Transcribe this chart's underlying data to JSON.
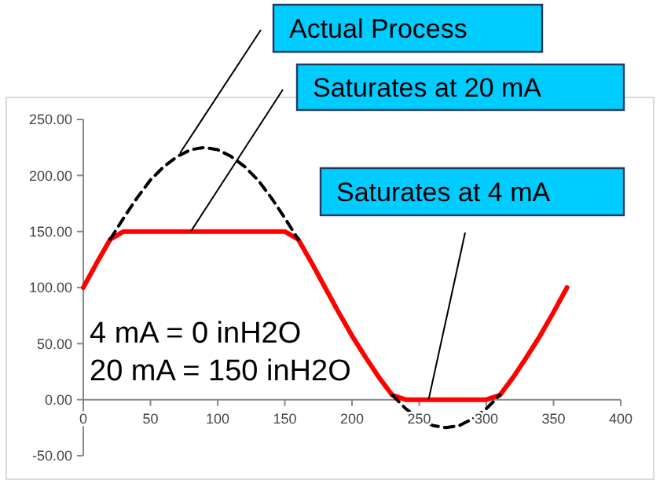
{
  "chart_data": {
    "type": "line",
    "x": [
      0,
      10,
      20,
      30,
      40,
      50,
      60,
      70,
      80,
      90,
      100,
      110,
      120,
      130,
      140,
      150,
      160,
      170,
      180,
      190,
      200,
      210,
      220,
      230,
      240,
      250,
      260,
      270,
      280,
      290,
      300,
      310,
      320,
      330,
      340,
      350,
      360
    ],
    "series": [
      {
        "color": "#ff0000",
        "line_style": "solid",
        "values": [
          100,
          122,
          143,
          150,
          150,
          150,
          150,
          150,
          150,
          150,
          150,
          150,
          150,
          150,
          150,
          150,
          143,
          122,
          100,
          78,
          57,
          38,
          20,
          4,
          0,
          0,
          0,
          0,
          0,
          0,
          0,
          4,
          20,
          38,
          57,
          78,
          100
        ]
      },
      {
        "color": "#000000",
        "line_style": "dashed",
        "values": [
          null,
          null,
          143,
          162,
          180,
          196,
          208,
          217,
          223,
          225,
          223,
          217,
          208,
          196,
          180,
          162,
          143,
          null,
          null,
          null,
          null,
          null,
          null,
          4,
          -8,
          -17,
          -23,
          -25,
          -23,
          -17,
          -8,
          4,
          null,
          null,
          null,
          null,
          null
        ]
      }
    ],
    "xlim": [
      0,
      400
    ],
    "xticks": [
      0,
      50,
      100,
      150,
      200,
      250,
      300,
      350,
      400
    ],
    "ylim": [
      -50,
      250
    ],
    "yticks": [
      {
        "value": -50,
        "label": "-50.00"
      },
      {
        "value": 0,
        "label": "0.00"
      },
      {
        "value": 50,
        "label": "50.00"
      },
      {
        "value": 100,
        "label": "100.00"
      },
      {
        "value": 150,
        "label": "150.00"
      },
      {
        "value": 200,
        "label": "200.00"
      },
      {
        "value": 250,
        "label": "250.00"
      }
    ],
    "grid": false,
    "marker": "none",
    "annotations": [
      {
        "text": "Actual Process",
        "x": 72,
        "y": 220
      },
      {
        "text": "Saturates at 20 mA",
        "x": 80,
        "y": 150
      },
      {
        "text": "Saturates at 4 mA",
        "x": 257,
        "y": 0
      },
      "4 mA = 0 inH2O",
      "20 mA = 150 inH2O"
    ]
  }
}
